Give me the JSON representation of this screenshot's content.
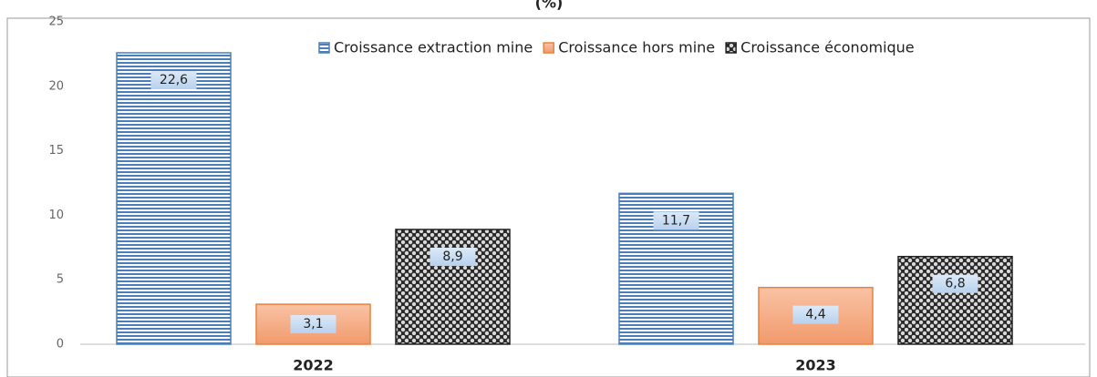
{
  "chart_data": {
    "type": "bar",
    "title": "(%)",
    "categories": [
      "2022",
      "2023"
    ],
    "series": [
      {
        "name": "Croissance extraction mine",
        "color": "#4a7ebb",
        "values": [
          22.6,
          11.7
        ],
        "value_labels": [
          "22,6",
          "11,7"
        ]
      },
      {
        "name": "Croissance hors mine",
        "color": "#e8823f",
        "values": [
          3.1,
          4.4
        ],
        "value_labels": [
          "3,1",
          "4,4"
        ]
      },
      {
        "name": "Croissance économique",
        "color": "#222222",
        "values": [
          8.9,
          6.8
        ],
        "value_labels": [
          "8,9",
          "6,8"
        ]
      }
    ],
    "ylim": [
      0,
      25
    ],
    "yticks": [
      0,
      5,
      10,
      15,
      20,
      25
    ],
    "grid": false,
    "legend": "top-right"
  }
}
